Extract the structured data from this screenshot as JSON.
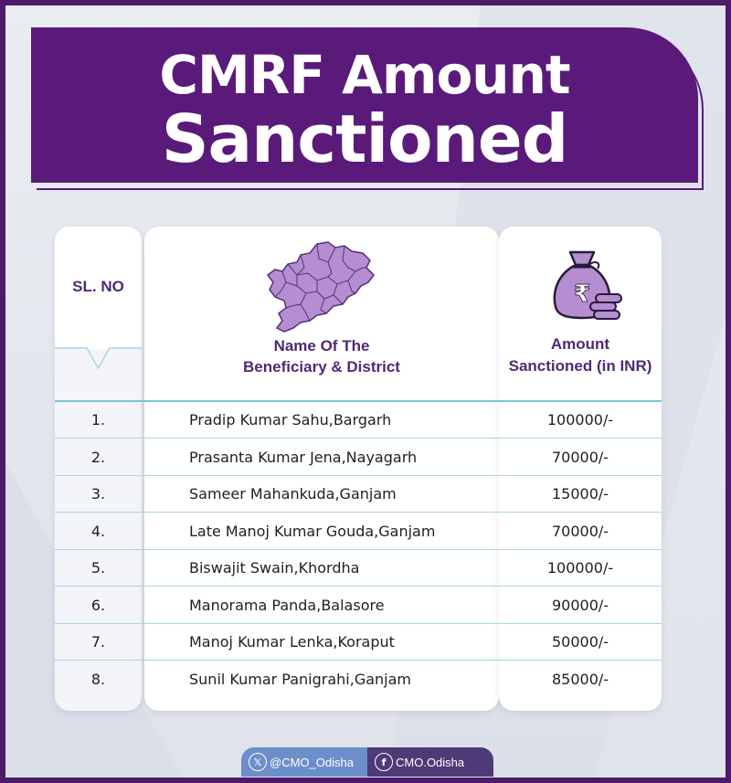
{
  "title": {
    "line1": "CMRF Amount",
    "line2": "Sanctioned"
  },
  "table": {
    "headers": {
      "sl_no": "SL. NO",
      "name_line1": "Name Of The",
      "name_line2": "Beneficiary & District",
      "amount_line1": "Amount",
      "amount_line2": "Sanctioned (in INR)"
    },
    "rows": [
      {
        "sl": "1.",
        "name": "Pradip Kumar Sahu,Bargarh",
        "amount": "100000/-"
      },
      {
        "sl": "2.",
        "name": "Prasanta Kumar Jena,Nayagarh",
        "amount": "70000/-"
      },
      {
        "sl": "3.",
        "name": "Sameer Mahankuda,Ganjam",
        "amount": "15000/-"
      },
      {
        "sl": "4.",
        "name": "Late Manoj Kumar Gouda,Ganjam",
        "amount": "70000/-"
      },
      {
        "sl": "5.",
        "name": "Biswajit Swain,Khordha",
        "amount": "100000/-"
      },
      {
        "sl": "6.",
        "name": "Manorama Panda,Balasore",
        "amount": "90000/-"
      },
      {
        "sl": "7.",
        "name": "Manoj Kumar Lenka,Koraput",
        "amount": "50000/-"
      },
      {
        "sl": "8.",
        "name": "Sunil Kumar Panigrahi,Ganjam",
        "amount": "85000/-"
      }
    ]
  },
  "icons": {
    "map": "odisha-map-icon",
    "money": "money-bag-icon",
    "x": "x-logo-icon",
    "facebook": "facebook-icon"
  },
  "footer": {
    "x_handle": "@CMO_Odisha",
    "facebook_handle": "CMO.Odisha"
  },
  "colors": {
    "brand_purple": "#5a1a7a",
    "header_text": "#4f2a73",
    "divider": "#a9d6e4",
    "icon_fill": "#b48ed0"
  }
}
